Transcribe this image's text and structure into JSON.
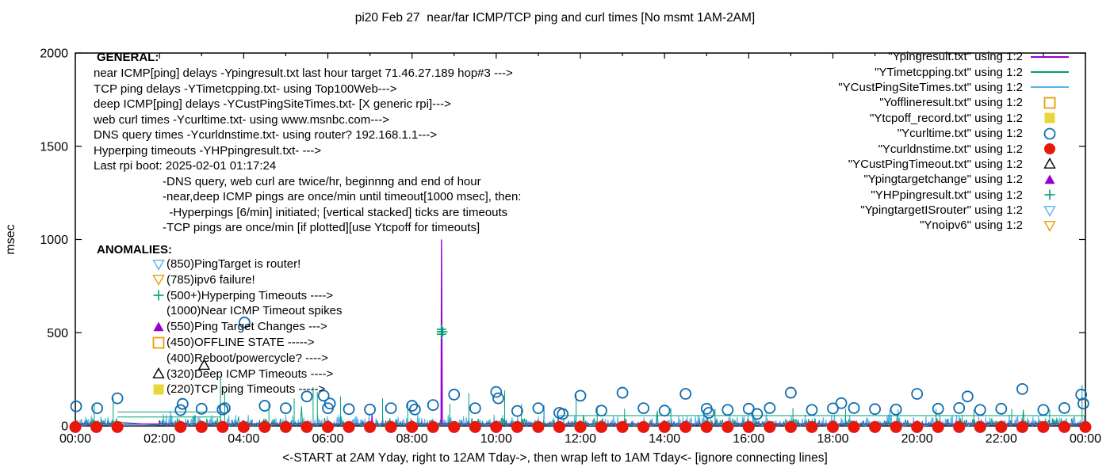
{
  "title": "pi20 Feb 27  near/far ICMP/TCP ping and curl times [No msmt 1AM-2AM]",
  "colors": {
    "near_icmp_purple": "#9400d3",
    "tcp_teal": "#009e73",
    "deep_icmp_skyblue": "#56b4e9",
    "offline_orange": "#e69f00",
    "tcpoff_yellow": "#e6d83a",
    "curl_blue": "#0f6cb0",
    "dns_red": "#e8190c",
    "timeout_black": "#000000"
  },
  "general": {
    "heading": "GENERAL:",
    "lines": [
      "near ICMP[ping] delays -Ypingresult.txt last hour target 71.46.27.189 hop#3 --->",
      "TCP ping delays -YTimetcpping.txt- using Top100Web--->",
      "deep ICMP[ping] delays -YCustPingSiteTimes.txt- [X generic rpi]--->",
      "web curl times -Ycurltime.txt- using www.msnbc.com--->",
      "DNS query times -Ycurldnstime.txt- using router? 192.168.1.1--->",
      "Hyperping timeouts -YHPpingresult.txt- --->",
      "Last rpi boot: 2025-02-01 01:17:24"
    ],
    "indented_lines": [
      "-DNS query, web curl are twice/hr, beginnng and end of hour",
      "-near,deep ICMP pings are once/min until timeout[1000 msec], then:",
      "  -Hyperpings [6/min] initiated; [vertical stacked] ticks are timeouts",
      "-TCP pings are once/min [if plotted][use Ytcpoff for timeouts]"
    ]
  },
  "anomalies": {
    "heading": "ANOMALIES:",
    "items": [
      {
        "marker": "triangle-down-open",
        "color": "#56b4e9",
        "text": "(850)PingTarget is router!"
      },
      {
        "marker": "triangle-down-open",
        "color": "#e69f00",
        "text": "(785)ipv6 failure!"
      },
      {
        "marker": "plus",
        "color": "#009e73",
        "text": "(500+)Hyperping Timeouts ---->"
      },
      {
        "marker": "none",
        "color": "",
        "text": "(1000)Near ICMP Timeout spikes"
      },
      {
        "marker": "triangle-up-filled",
        "color": "#9400d3",
        "text": "(550)Ping Target Changes --->"
      },
      {
        "marker": "square-open",
        "color": "#e69f00",
        "text": "(450)OFFLINE STATE ----->"
      },
      {
        "marker": "none",
        "color": "",
        "text": "(400)Reboot/powercycle? ---->"
      },
      {
        "marker": "triangle-up-open",
        "color": "#000000",
        "text": "(320)Deep ICMP Timeouts ---->"
      },
      {
        "marker": "square-filled",
        "color": "#e6d83a",
        "text": "(220)TCP ping Timeouts ----->"
      }
    ]
  },
  "legend": [
    {
      "label": "\"Ypingresult.txt\" using 1:2",
      "marker": "line",
      "color": "#9400d3"
    },
    {
      "label": "\"YTimetcpping.txt\" using 1:2",
      "marker": "line",
      "color": "#009e73"
    },
    {
      "label": "\"YCustPingSiteTimes.txt\" using 1:2",
      "marker": "line",
      "color": "#56b4e9"
    },
    {
      "label": "\"Yofflineresult.txt\" using 1:2",
      "marker": "square-open",
      "color": "#e69f00"
    },
    {
      "label": "\"Ytcpoff_record.txt\" using 1:2",
      "marker": "square-filled",
      "color": "#e6d83a"
    },
    {
      "label": "\"Ycurltime.txt\" using 1:2",
      "marker": "circle-open",
      "color": "#0f6cb0"
    },
    {
      "label": "\"Ycurldnstime.txt\" using 1:2",
      "marker": "circle-filled",
      "color": "#e8190c"
    },
    {
      "label": "\"YCustPingTimeout.txt\" using 1:2",
      "marker": "triangle-up-open",
      "color": "#000000"
    },
    {
      "label": "\"Ypingtargetchange\" using 1:2",
      "marker": "triangle-up-filled",
      "color": "#9400d3"
    },
    {
      "label": "\"YHPpingresult.txt\" using 1:2",
      "marker": "plus",
      "color": "#009e73"
    },
    {
      "label": "\"YpingtargetISrouter\" using 1:2",
      "marker": "triangle-down-open",
      "color": "#56b4e9"
    },
    {
      "label": "\"Ynoipv6\" using 1:2",
      "marker": "triangle-down-open",
      "color": "#e69f00"
    }
  ],
  "axes": {
    "ylabel": "msec",
    "xlabel": "<-START at 2AM Yday, right to 12AM Tday->, then wrap left to 1AM Tday<- [ignore connecting lines]"
  },
  "chart_data": {
    "type": "line",
    "title": "pi20 Feb 27  near/far ICMP/TCP ping and curl times [No msmt 1AM-2AM]",
    "xlabel": "<-START at 2AM Yday, right to 12AM Tday->, then wrap left to 1AM Tday<- [ignore connecting lines]",
    "ylabel": "msec",
    "xlim": [
      0,
      24
    ],
    "ylim": [
      0,
      2000
    ],
    "grid": false,
    "legend_position": "top-right-inside",
    "x_tick_labels": [
      "00:00",
      "02:00",
      "04:00",
      "06:00",
      "08:00",
      "10:00",
      "12:00",
      "14:00",
      "16:00",
      "18:00",
      "20:00",
      "22:00",
      "00:00"
    ],
    "y_ticks": [
      0,
      500,
      1000,
      1500,
      2000
    ],
    "series": [
      {
        "name": "YCustPingSiteTimes-deep-icmp-noise",
        "kind": "noise",
        "color": "#56b4e9",
        "seed": 7,
        "step": 0.033,
        "base": 3,
        "amp": 58,
        "gap": [
          1.03,
          2.0
        ]
      },
      {
        "name": "YTimetcpping-tcp-noise",
        "kind": "noise",
        "color": "#009e73",
        "seed": 3,
        "step": 0.05,
        "base": 3,
        "amp": 40,
        "gap": [
          1.03,
          2.0
        ]
      },
      {
        "name": "tcp-connecting-baselines",
        "kind": "segments",
        "color": "#009e73",
        "segments": [
          [
            1.0,
            3.45,
            75
          ],
          [
            1.0,
            3.45,
            48
          ],
          [
            11.5,
            24,
            55
          ]
        ]
      },
      {
        "name": "tcp-tall-spikes",
        "kind": "vlines",
        "color": "#009e73",
        "points": [
          [
            0.45,
            118
          ],
          [
            0.9,
            150
          ],
          [
            3.45,
            260
          ],
          [
            3.55,
            178
          ],
          [
            4.6,
            118
          ],
          [
            5.2,
            148
          ],
          [
            5.65,
            208
          ],
          [
            5.75,
            182
          ],
          [
            6.3,
            158
          ],
          [
            7.3,
            148
          ],
          [
            7.9,
            128
          ],
          [
            8.9,
            118
          ],
          [
            9.35,
            176
          ],
          [
            10.2,
            190
          ],
          [
            10.6,
            118
          ],
          [
            11.9,
            166
          ],
          [
            12.4,
            108
          ],
          [
            13.05,
            92
          ],
          [
            14.15,
            96
          ],
          [
            15.2,
            92
          ],
          [
            16.1,
            88
          ],
          [
            17.05,
            96
          ],
          [
            18.3,
            92
          ],
          [
            19.55,
            88
          ],
          [
            20.45,
            92
          ],
          [
            21.35,
            88
          ],
          [
            22.25,
            92
          ],
          [
            23.15,
            88
          ],
          [
            23.92,
            220
          ]
        ]
      },
      {
        "name": "Ypingresult-near-icmp",
        "kind": "line",
        "color": "#9400d3",
        "points": [
          [
            0,
            10
          ],
          [
            7.04,
            10
          ],
          [
            7.05,
            58
          ],
          [
            7.06,
            10
          ],
          [
            8.69,
            10
          ],
          [
            8.7,
            1000
          ],
          [
            8.72,
            10
          ],
          [
            24,
            10
          ]
        ]
      },
      {
        "name": "Ycurltime-web-curl",
        "kind": "scatter",
        "marker": "circle-open",
        "color": "#0f6cb0",
        "points": [
          [
            0.02,
            105
          ],
          [
            0.52,
            95
          ],
          [
            1.0,
            148
          ],
          [
            2.5,
            85
          ],
          [
            2.55,
            118
          ],
          [
            3.0,
            92
          ],
          [
            3.5,
            88
          ],
          [
            3.55,
            95
          ],
          [
            4.02,
            555
          ],
          [
            4.5,
            108
          ],
          [
            5.0,
            95
          ],
          [
            5.5,
            158
          ],
          [
            5.9,
            162
          ],
          [
            6.0,
            95
          ],
          [
            6.05,
            120
          ],
          [
            6.5,
            90
          ],
          [
            7.0,
            88
          ],
          [
            7.5,
            95
          ],
          [
            8.0,
            108
          ],
          [
            8.07,
            88
          ],
          [
            8.5,
            112
          ],
          [
            9.0,
            168
          ],
          [
            9.5,
            95
          ],
          [
            10.0,
            182
          ],
          [
            10.05,
            148
          ],
          [
            10.5,
            80
          ],
          [
            11.0,
            95
          ],
          [
            11.5,
            70
          ],
          [
            11.58,
            64
          ],
          [
            12.0,
            162
          ],
          [
            12.5,
            82
          ],
          [
            13.0,
            178
          ],
          [
            13.5,
            95
          ],
          [
            14.0,
            82
          ],
          [
            14.5,
            172
          ],
          [
            15.0,
            92
          ],
          [
            15.05,
            70
          ],
          [
            15.5,
            86
          ],
          [
            16.0,
            92
          ],
          [
            16.2,
            64
          ],
          [
            16.5,
            96
          ],
          [
            17.0,
            178
          ],
          [
            17.5,
            86
          ],
          [
            18.0,
            94
          ],
          [
            18.2,
            122
          ],
          [
            18.5,
            96
          ],
          [
            19.0,
            90
          ],
          [
            19.5,
            88
          ],
          [
            20.0,
            172
          ],
          [
            20.5,
            92
          ],
          [
            21.0,
            96
          ],
          [
            21.2,
            158
          ],
          [
            21.5,
            86
          ],
          [
            22.0,
            92
          ],
          [
            22.5,
            198
          ],
          [
            23.0,
            86
          ],
          [
            23.5,
            96
          ],
          [
            23.9,
            168
          ],
          [
            23.95,
            120
          ]
        ]
      },
      {
        "name": "Ycurldnstime-dns",
        "kind": "scatter",
        "marker": "circle-filled",
        "color": "#e8190c",
        "value": -6,
        "times": [
          0,
          0.5,
          1,
          2.5,
          3,
          3.5,
          4,
          4.5,
          5,
          5.5,
          6,
          6.5,
          7,
          7.5,
          8,
          8.5,
          9,
          9.5,
          10,
          10.5,
          11,
          11.5,
          12,
          12.5,
          13,
          13.5,
          14,
          14.5,
          15,
          15.5,
          16,
          16.5,
          17,
          17.5,
          18,
          18.5,
          19,
          19.5,
          20,
          20.5,
          21,
          21.5,
          22,
          22.5,
          23,
          23.5,
          24
        ]
      },
      {
        "name": "YHPpingresult-hyperping-timeouts",
        "kind": "scatter",
        "marker": "plus",
        "color": "#009e73",
        "points": [
          [
            8.7,
            492
          ],
          [
            8.7,
            505
          ],
          [
            8.7,
            518
          ],
          [
            8.73,
            505
          ]
        ]
      },
      {
        "name": "YCustPingTimeout-deep-timeouts",
        "kind": "scatter",
        "marker": "triangle-up-open",
        "color": "#000000",
        "points": [
          [
            3.06,
            326
          ]
        ]
      }
    ],
    "annotations": {
      "near_icmp_timeout_spike": {
        "t": 8.7,
        "value": 1000
      },
      "hyperping_stack_level": 505,
      "no_measurement_window_hours": [
        1,
        2
      ]
    }
  }
}
